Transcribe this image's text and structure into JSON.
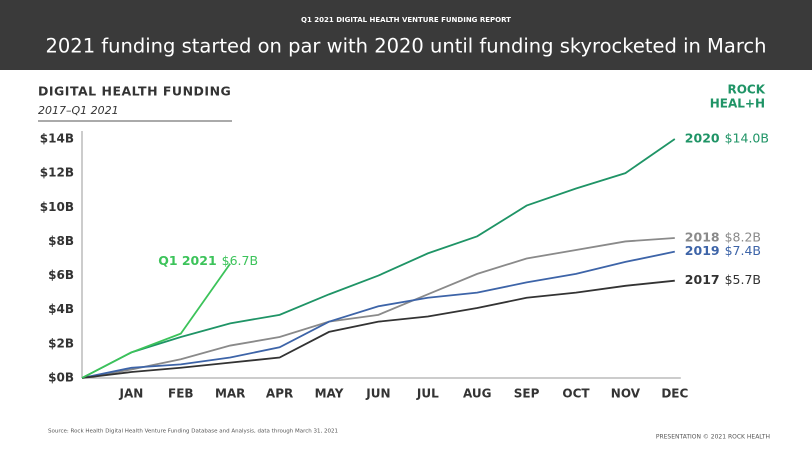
{
  "header": {
    "kicker": "Q1 2021 DIGITAL HEALTH VENTURE FUNDING REPORT",
    "title": "2021 funding started on par with 2020 until funding skyrocketed in March"
  },
  "logo": {
    "line1": "ROCK",
    "line2": "HEAL+H"
  },
  "chart_data": {
    "type": "line",
    "title": "DIGITAL HEALTH FUNDING",
    "subtitle": "2017–Q1 2021",
    "categories": [
      null,
      "JAN",
      "FEB",
      "MAR",
      "APR",
      "MAY",
      "JUN",
      "JUL",
      "AUG",
      "SEP",
      "OCT",
      "NOV",
      "DEC"
    ],
    "ylim": [
      0,
      14
    ],
    "yticks": [
      {
        "value": 0,
        "label": "$0B"
      },
      {
        "value": 2,
        "label": "$2B"
      },
      {
        "value": 4,
        "label": "$4B"
      },
      {
        "value": 6,
        "label": "$6B"
      },
      {
        "value": 8,
        "label": "$8B"
      },
      {
        "value": 10,
        "label": "$10B"
      },
      {
        "value": 12,
        "label": "$12B"
      },
      {
        "value": 14,
        "label": "$14B"
      }
    ],
    "grid": false,
    "series": [
      {
        "name": "2020",
        "color": "#1f9466",
        "values": [
          0,
          1.5,
          2.4,
          3.2,
          3.7,
          4.9,
          6.0,
          7.3,
          8.3,
          10.1,
          11.1,
          12.0,
          14.0
        ],
        "value_labels": [
          null,
          null,
          null,
          null,
          null,
          null,
          null,
          null,
          null,
          null,
          null,
          null,
          "$14.0B"
        ]
      },
      {
        "name": "2018",
        "color": "#8a8a8a",
        "values": [
          0,
          0.5,
          1.1,
          1.9,
          2.4,
          3.3,
          3.7,
          4.9,
          6.1,
          7.0,
          7.5,
          8.0,
          8.2
        ],
        "value_labels": [
          null,
          null,
          null,
          null,
          null,
          null,
          null,
          null,
          null,
          null,
          null,
          null,
          "$8.2B"
        ]
      },
      {
        "name": "2019",
        "color": "#3d64a8",
        "values": [
          0,
          0.6,
          0.8,
          1.2,
          1.8,
          3.3,
          4.2,
          4.7,
          5.0,
          5.6,
          6.1,
          6.8,
          7.4
        ],
        "value_labels": [
          null,
          null,
          null,
          null,
          null,
          null,
          null,
          null,
          null,
          null,
          null,
          null,
          "$7.4B"
        ]
      },
      {
        "name": "2017",
        "color": "#333333",
        "values": [
          0,
          0.35,
          0.6,
          0.9,
          1.2,
          2.7,
          3.3,
          3.6,
          4.1,
          4.7,
          5.0,
          5.4,
          5.7
        ],
        "value_labels": [
          null,
          null,
          null,
          null,
          null,
          null,
          null,
          null,
          null,
          null,
          null,
          null,
          "$5.7B"
        ]
      },
      {
        "name": "Q1 2021",
        "color": "#3cc35a",
        "values": [
          0,
          1.5,
          2.6,
          6.7,
          null,
          null,
          null,
          null,
          null,
          null,
          null,
          null,
          null
        ],
        "value_labels": [
          null,
          null,
          null,
          "$6.7B",
          null,
          null,
          null,
          null,
          null,
          null,
          null,
          null,
          null
        ]
      }
    ]
  },
  "footer": {
    "source": "Source: Rock Health Digital Health Venture Funding Database and Analysis, data through March 31, 2021",
    "credit": "PRESENTATION © 2021 ROCK HEALTH"
  }
}
